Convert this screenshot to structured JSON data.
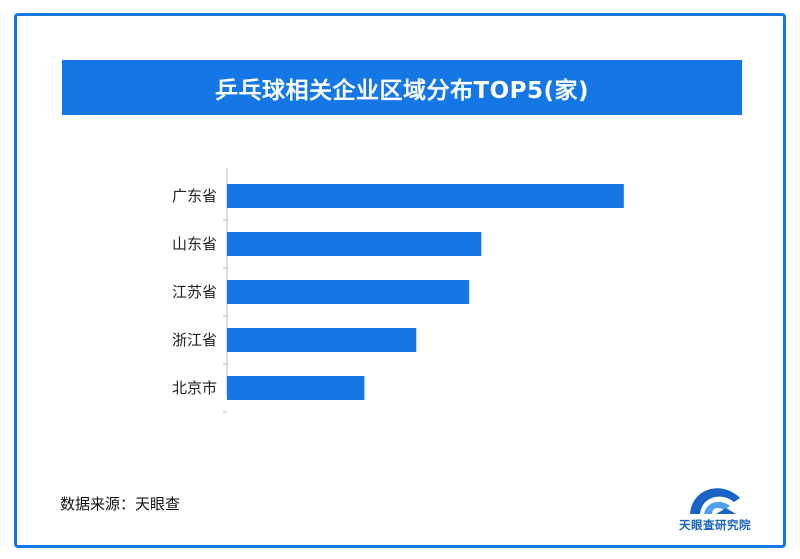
{
  "chart_data": {
    "type": "bar",
    "orientation": "horizontal",
    "title": "乒乓球相关企业区域分布TOP5(家)",
    "categories": [
      "广东省",
      "山东省",
      "江苏省",
      "浙江省",
      "北京市"
    ],
    "values": [
      390,
      250,
      238,
      186,
      135
    ],
    "xlim": [
      0,
      400
    ],
    "grid": false,
    "legend": "none",
    "bar_color": "#1577e6",
    "axis_color": "#b9b9b9"
  },
  "footer": {
    "source": "数据来源：天眼查",
    "logo_text": "天眼查研究院"
  },
  "colors": {
    "accent": "#1577e6",
    "logo": "#1a63c7"
  }
}
